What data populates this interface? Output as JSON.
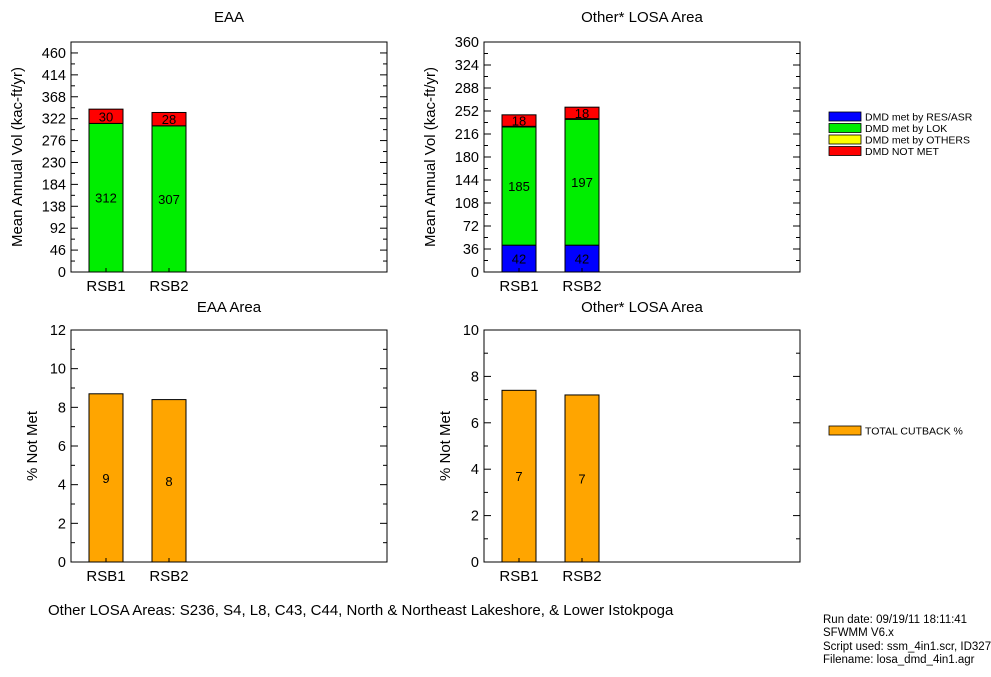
{
  "chart_data": [
    {
      "type": "bar",
      "stacked": true,
      "title": "EAA",
      "ylabel": "Mean Annual Vol (kac-ft/yr)",
      "categories": [
        "RSB1",
        "RSB2"
      ],
      "ylim": [
        0,
        483
      ],
      "yticks": [
        0,
        46,
        92,
        138,
        184,
        230,
        276,
        322,
        368,
        414,
        460
      ],
      "series": [
        {
          "name": "DMD met by LOK",
          "color": "#00ee00",
          "values": [
            312,
            307
          ],
          "labels": [
            "312",
            "307"
          ]
        },
        {
          "name": "DMD NOT MET",
          "color": "#ff0000",
          "values": [
            30,
            28
          ],
          "labels": [
            "30",
            "28"
          ]
        }
      ],
      "grid": false
    },
    {
      "type": "bar",
      "stacked": true,
      "title": "Other* LOSA Area",
      "ylabel": "Mean Annual Vol (kac-ft/yr)",
      "categories": [
        "RSB1",
        "RSB2"
      ],
      "ylim": [
        0,
        360
      ],
      "yticks": [
        0,
        36,
        72,
        108,
        144,
        180,
        216,
        252,
        288,
        324,
        360
      ],
      "series": [
        {
          "name": "DMD met by RES/ASR",
          "color": "#0000ff",
          "values": [
            42,
            42
          ],
          "labels": [
            "42",
            "42"
          ]
        },
        {
          "name": "DMD met by LOK",
          "color": "#00ee00",
          "values": [
            185,
            197
          ],
          "labels": [
            "185",
            "197"
          ]
        },
        {
          "name": "DMD met by OTHERS",
          "color": "#ffff00",
          "values": [
            1,
            1
          ],
          "labels": [
            "",
            ""
          ]
        },
        {
          "name": "DMD NOT MET",
          "color": "#ff0000",
          "values": [
            18,
            18
          ],
          "labels": [
            "18",
            "18"
          ]
        }
      ],
      "grid": false
    },
    {
      "type": "bar",
      "title": "EAA Area",
      "ylabel": "% Not Met",
      "categories": [
        "RSB1",
        "RSB2"
      ],
      "ylim": [
        0,
        12
      ],
      "yticks": [
        0,
        2,
        4,
        6,
        8,
        10,
        12
      ],
      "series": [
        {
          "name": "TOTAL CUTBACK %",
          "color": "#ffa500",
          "values": [
            8.7,
            8.4
          ],
          "labels": [
            "9",
            "8"
          ]
        }
      ],
      "grid": false
    },
    {
      "type": "bar",
      "title": "Other* LOSA Area",
      "ylabel": "% Not Met",
      "categories": [
        "RSB1",
        "RSB2"
      ],
      "ylim": [
        0,
        10
      ],
      "yticks": [
        0,
        2,
        4,
        6,
        8,
        10
      ],
      "series": [
        {
          "name": "TOTAL CUTBACK %",
          "color": "#ffa500",
          "values": [
            7.4,
            7.2
          ],
          "labels": [
            "7",
            "7"
          ]
        }
      ],
      "grid": false
    }
  ],
  "legends": {
    "top": [
      {
        "label": "DMD met by RES/ASR",
        "color": "#0000ff"
      },
      {
        "label": "DMD met by LOK",
        "color": "#00ee00"
      },
      {
        "label": "DMD met by OTHERS",
        "color": "#ffff00"
      },
      {
        "label": "DMD NOT MET",
        "color": "#ff0000"
      }
    ],
    "bottom": [
      {
        "label": "TOTAL CUTBACK %",
        "color": "#ffa500"
      }
    ]
  },
  "footnote": "Other LOSA Areas: S236, S4, L8, C43, C44, North & Northeast Lakeshore, & Lower Istokpoga",
  "run_info": [
    "Run date: 09/19/11 18:11:41",
    "SFWMM V6.x",
    "Script used: ssm_4in1.scr, ID327",
    "Filename: losa_dmd_4in1.agr"
  ]
}
